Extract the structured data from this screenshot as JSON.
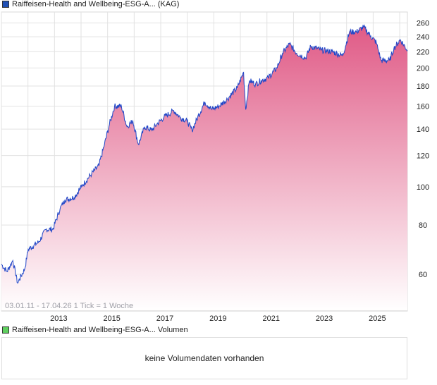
{
  "legend_main": {
    "label": "Raiffeisen-Health and Wellbeing-ESG-A... (KAG)",
    "color": "#1f4fb4"
  },
  "legend_volume": {
    "label": "Raiffeisen-Health and Wellbeing-ESG-A... Volumen",
    "color": "#5fcf5f"
  },
  "range_text": "03.01.11 - 17.04.26   1 Tick = 1 Woche",
  "volume_message": "keine Volumendaten vorhanden",
  "colors": {
    "line": "#2047c8",
    "fill_top": "#e05a86",
    "fill_bottom": "#ffffff",
    "grid": "#e2e2e2"
  },
  "chart_data": {
    "type": "area",
    "title": "Raiffeisen-Health and Wellbeing-ESG-A... (KAG)",
    "yscale": "log",
    "ylim": [
      52,
      275
    ],
    "xlim": [
      2011.0,
      2026.29
    ],
    "y_ticks": [
      60,
      80,
      100,
      120,
      140,
      160,
      180,
      200,
      220,
      240,
      260
    ],
    "x_ticks": [
      "2013",
      "2015",
      "2017",
      "2019",
      "2021",
      "2023",
      "2025"
    ],
    "grid": true,
    "series": [
      {
        "name": "Raiffeisen-Health and Wellbeing-ESG-A...",
        "points": [
          [
            2011.0,
            63.6
          ],
          [
            2011.21,
            61
          ],
          [
            2011.43,
            65
          ],
          [
            2011.61,
            57
          ],
          [
            2011.88,
            62
          ],
          [
            2012.01,
            69.4
          ],
          [
            2012.41,
            72.5
          ],
          [
            2012.68,
            78
          ],
          [
            2012.94,
            78
          ],
          [
            2013.21,
            88
          ],
          [
            2013.39,
            92.7
          ],
          [
            2013.74,
            94
          ],
          [
            2014.01,
            100
          ],
          [
            2014.4,
            108
          ],
          [
            2014.67,
            113
          ],
          [
            2014.88,
            128
          ],
          [
            2015.07,
            144
          ],
          [
            2015.26,
            160
          ],
          [
            2015.52,
            160
          ],
          [
            2015.73,
            142
          ],
          [
            2015.95,
            147
          ],
          [
            2016.16,
            128
          ],
          [
            2016.4,
            142
          ],
          [
            2016.66,
            139
          ],
          [
            2016.85,
            144
          ],
          [
            2017.12,
            150
          ],
          [
            2017.49,
            156
          ],
          [
            2017.73,
            150
          ],
          [
            2017.99,
            147
          ],
          [
            2018.18,
            139
          ],
          [
            2018.39,
            150
          ],
          [
            2018.66,
            164
          ],
          [
            2018.93,
            157
          ],
          [
            2019.19,
            160
          ],
          [
            2019.51,
            167
          ],
          [
            2019.88,
            178
          ],
          [
            2020.12,
            195
          ],
          [
            2020.2,
            157
          ],
          [
            2020.34,
            186
          ],
          [
            2020.57,
            182
          ],
          [
            2020.79,
            186
          ],
          [
            2021.05,
            189
          ],
          [
            2021.37,
            200
          ],
          [
            2021.59,
            218
          ],
          [
            2021.85,
            230
          ],
          [
            2022.12,
            218
          ],
          [
            2022.46,
            212
          ],
          [
            2022.65,
            227
          ],
          [
            2023.05,
            222
          ],
          [
            2023.45,
            220
          ],
          [
            2023.85,
            215
          ],
          [
            2024.11,
            247
          ],
          [
            2024.38,
            247
          ],
          [
            2024.64,
            254
          ],
          [
            2024.91,
            241
          ],
          [
            2025.12,
            232
          ],
          [
            2025.3,
            209
          ],
          [
            2025.62,
            209
          ],
          [
            2025.78,
            224
          ],
          [
            2026.02,
            236
          ],
          [
            2026.29,
            222
          ]
        ]
      }
    ]
  }
}
